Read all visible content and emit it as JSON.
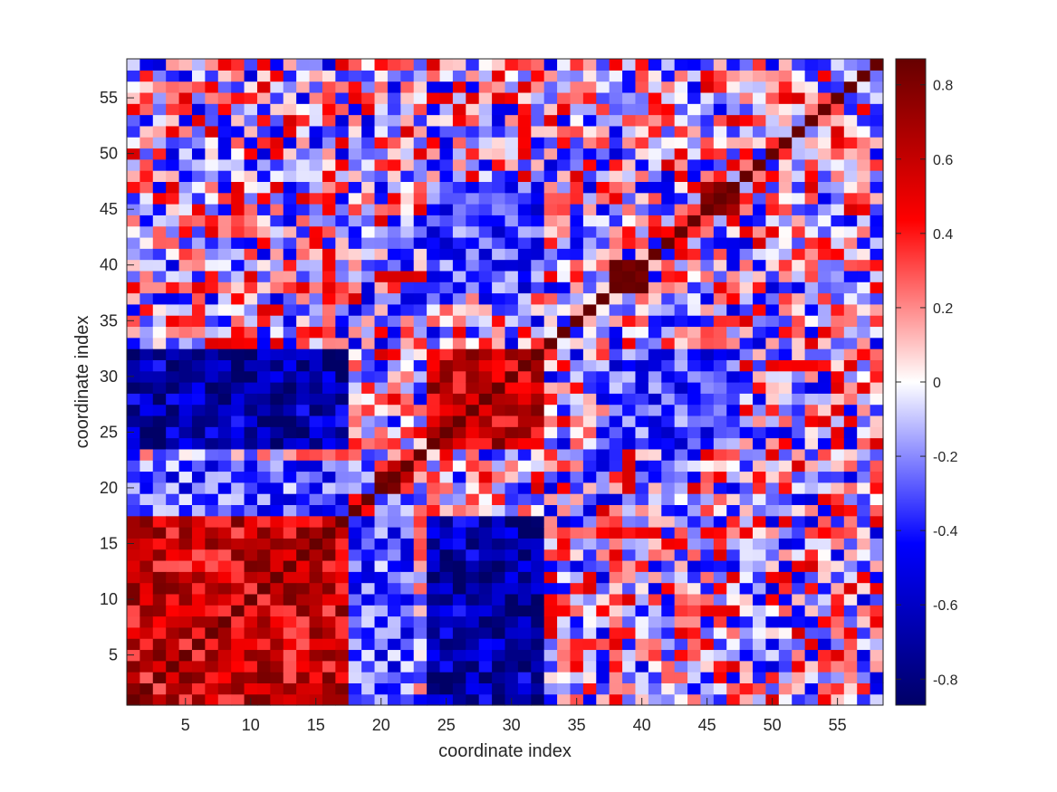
{
  "chart_data": {
    "type": "heatmap",
    "title": "",
    "xlabel": "coordinate index",
    "ylabel": "coordinate index",
    "n": 58,
    "xlim": [
      0.5,
      58.5
    ],
    "ylim": [
      0.5,
      58.5
    ],
    "y_direction": "normal",
    "x_ticks": [
      5,
      10,
      15,
      20,
      25,
      30,
      35,
      40,
      45,
      50,
      55
    ],
    "y_ticks": [
      5,
      10,
      15,
      20,
      25,
      30,
      35,
      40,
      45,
      50,
      55
    ],
    "colorbar": {
      "range": [
        -0.87,
        0.87
      ],
      "ticks": [
        -0.8,
        -0.6,
        -0.4,
        -0.2,
        0,
        0.2,
        0.4,
        0.6,
        0.8
      ],
      "colormap_stops": [
        "#000066",
        "#0000ff",
        "#ffffff",
        "#ff0000",
        "#660000"
      ]
    },
    "diagonal_value": 0.87,
    "blocks": [
      {
        "from": 1,
        "to": 17,
        "value": 0.55
      },
      {
        "from": 24,
        "to": 32,
        "value": 0.6
      },
      {
        "from": 38,
        "to": 40,
        "value": 0.8
      },
      {
        "from": 45,
        "to": 47,
        "value": 0.7
      },
      {
        "from": 20,
        "to": 22,
        "value": 0.55
      }
    ],
    "cross_blocks": [
      {
        "a": [
          1,
          17
        ],
        "b": [
          24,
          32
        ],
        "value": -0.65
      },
      {
        "a": [
          24,
          32
        ],
        "b": [
          38,
          47
        ],
        "value": -0.35
      },
      {
        "a": [
          1,
          17
        ],
        "b": [
          18,
          22
        ],
        "value": -0.3
      }
    ],
    "noise_amplitude": 0.55,
    "seed": 7
  }
}
